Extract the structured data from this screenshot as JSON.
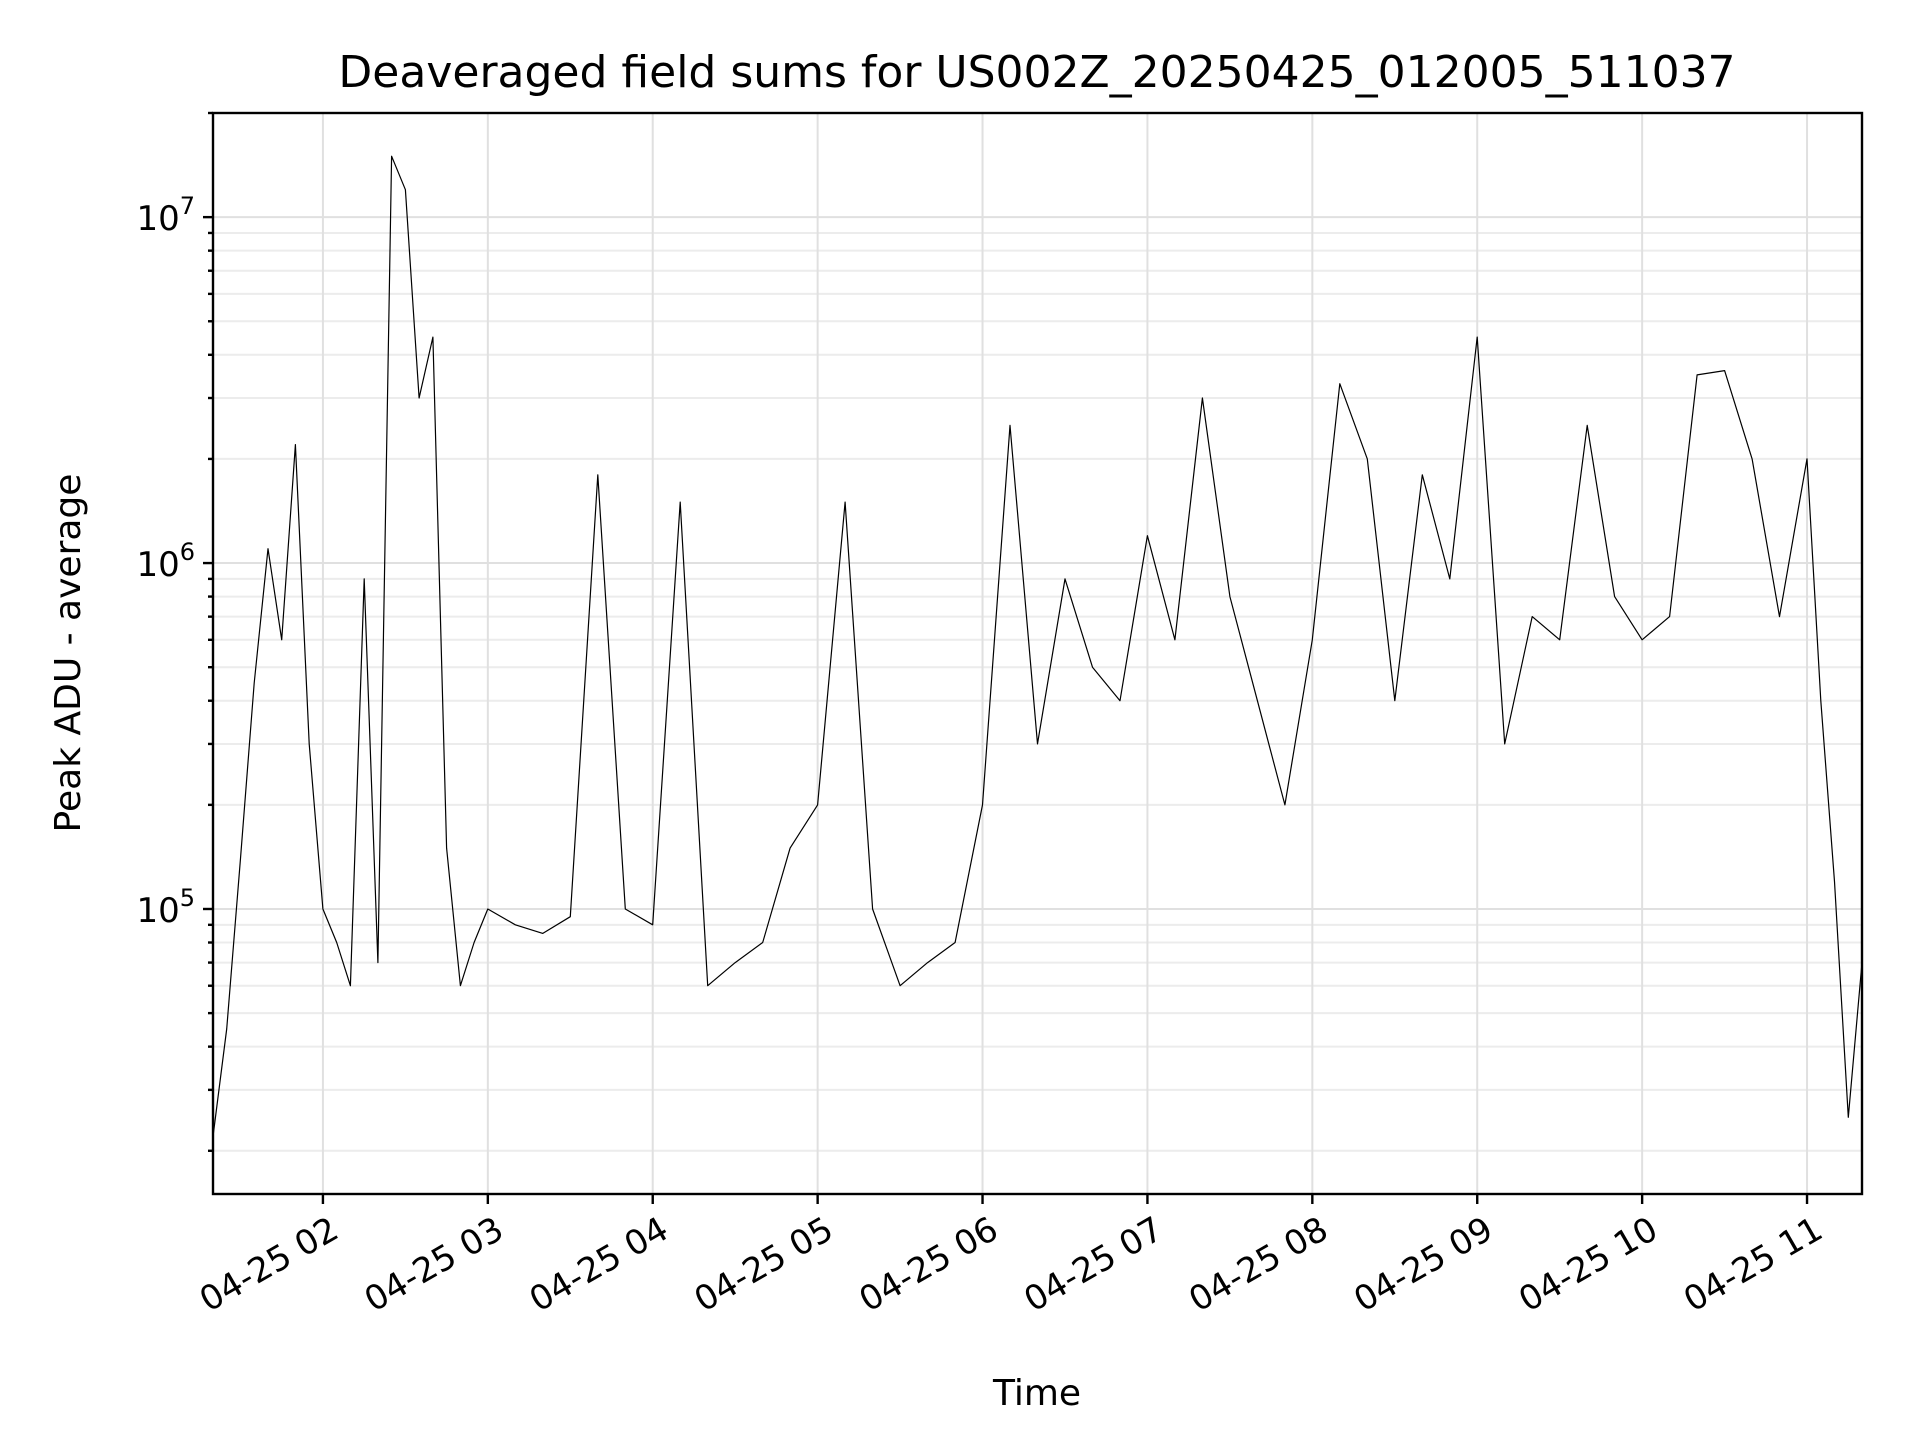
{
  "chart_data": {
    "type": "line",
    "title": "Deaveraged field sums for US002Z_20250425_012005_511037",
    "xlabel": "Time",
    "ylabel": "Peak ADU - average",
    "x_ticks": [
      "04-25 02",
      "04-25 03",
      "04-25 04",
      "04-25 05",
      "04-25 06",
      "04-25 07",
      "04-25 08",
      "04-25 09",
      "04-25 10",
      "04-25 11"
    ],
    "y_ticks": [
      {
        "base": "10",
        "exp": "5",
        "value": 100000
      },
      {
        "base": "10",
        "exp": "6",
        "value": 1000000
      },
      {
        "base": "10",
        "exp": "7",
        "value": 10000000
      }
    ],
    "y_scale": "log",
    "xlim": [
      "2025-04-25 01:20",
      "2025-04-25 11:20"
    ],
    "ylim": [
      15000,
      20000000
    ],
    "grid": "on",
    "line_color": "#000000",
    "series": [
      {
        "x": [
          "2025-04-25 01:20",
          "2025-04-25 01:25",
          "2025-04-25 01:30",
          "2025-04-25 01:35",
          "2025-04-25 01:40",
          "2025-04-25 01:45",
          "2025-04-25 01:50",
          "2025-04-25 01:55",
          "2025-04-25 02:00",
          "2025-04-25 02:05",
          "2025-04-25 02:10",
          "2025-04-25 02:15",
          "2025-04-25 02:20",
          "2025-04-25 02:25",
          "2025-04-25 02:30",
          "2025-04-25 02:35",
          "2025-04-25 02:40",
          "2025-04-25 02:45",
          "2025-04-25 02:50",
          "2025-04-25 02:55",
          "2025-04-25 03:00",
          "2025-04-25 03:10",
          "2025-04-25 03:20",
          "2025-04-25 03:30",
          "2025-04-25 03:40",
          "2025-04-25 03:50",
          "2025-04-25 04:00",
          "2025-04-25 04:10",
          "2025-04-25 04:20",
          "2025-04-25 04:30",
          "2025-04-25 04:40",
          "2025-04-25 04:50",
          "2025-04-25 05:00",
          "2025-04-25 05:10",
          "2025-04-25 05:20",
          "2025-04-25 05:30",
          "2025-04-25 05:40",
          "2025-04-25 05:50",
          "2025-04-25 06:00",
          "2025-04-25 06:10",
          "2025-04-25 06:20",
          "2025-04-25 06:30",
          "2025-04-25 06:40",
          "2025-04-25 06:50",
          "2025-04-25 07:00",
          "2025-04-25 07:10",
          "2025-04-25 07:20",
          "2025-04-25 07:30",
          "2025-04-25 07:40",
          "2025-04-25 07:50",
          "2025-04-25 08:00",
          "2025-04-25 08:10",
          "2025-04-25 08:20",
          "2025-04-25 08:30",
          "2025-04-25 08:40",
          "2025-04-25 08:50",
          "2025-04-25 09:00",
          "2025-04-25 09:10",
          "2025-04-25 09:20",
          "2025-04-25 09:30",
          "2025-04-25 09:40",
          "2025-04-25 09:50",
          "2025-04-25 10:00",
          "2025-04-25 10:10",
          "2025-04-25 10:20",
          "2025-04-25 10:30",
          "2025-04-25 10:40",
          "2025-04-25 10:50",
          "2025-04-25 11:00",
          "2025-04-25 11:05",
          "2025-04-25 11:10",
          "2025-04-25 11:15",
          "2025-04-25 11:20"
        ],
        "y": [
          22000,
          45000,
          140000,
          450000,
          1100000,
          600000,
          2200000,
          300000,
          100000,
          80000,
          60000,
          900000,
          70000,
          15000000,
          12000000,
          3000000,
          4500000,
          150000,
          60000,
          80000,
          100000,
          90000,
          85000,
          95000,
          1800000,
          100000,
          90000,
          1500000,
          60000,
          70000,
          80000,
          150000,
          200000,
          1500000,
          100000,
          60000,
          70000,
          80000,
          200000,
          2500000,
          300000,
          900000,
          500000,
          400000,
          1200000,
          600000,
          3000000,
          800000,
          400000,
          200000,
          600000,
          3300000,
          2000000,
          400000,
          1800000,
          900000,
          4500000,
          300000,
          700000,
          600000,
          2500000,
          800000,
          600000,
          700000,
          3500000,
          3600000,
          2000000,
          700000,
          2000000,
          400000,
          120000,
          25000,
          70000
        ]
      }
    ]
  }
}
